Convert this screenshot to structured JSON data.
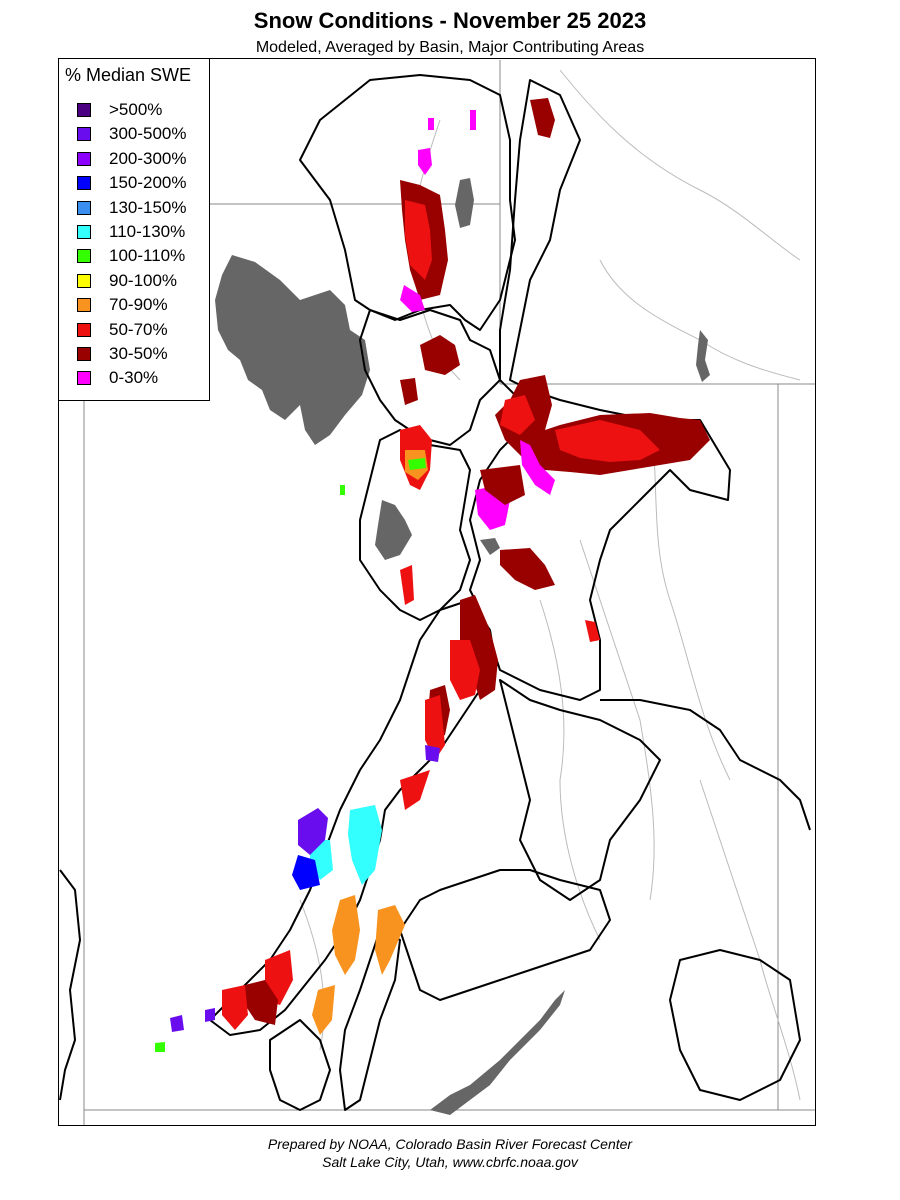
{
  "title": "Snow Conditions - November 25 2023",
  "subtitle": "Modeled, Averaged by Basin, Major Contributing Areas",
  "legend": {
    "title": "% Median SWE",
    "items": [
      {
        "label": ">500%",
        "color": "#4b0082"
      },
      {
        "label": "300-500%",
        "color": "#6a0dee"
      },
      {
        "label": "200-300%",
        "color": "#8b00ff"
      },
      {
        "label": "150-200%",
        "color": "#0000ff"
      },
      {
        "label": "130-150%",
        "color": "#3a8ef0"
      },
      {
        "label": "110-130%",
        "color": "#33ffff"
      },
      {
        "label": "100-110%",
        "color": "#33ff00"
      },
      {
        "label": "90-100%",
        "color": "#ffff00"
      },
      {
        "label": "70-90%",
        "color": "#f7931e"
      },
      {
        "label": "50-70%",
        "color": "#ee1111"
      },
      {
        "label": "30-50%",
        "color": "#990000"
      },
      {
        "label": "0-30%",
        "color": "#ff00ff"
      }
    ]
  },
  "colors": {
    "lake": "#666666",
    "basin_border": "#000000",
    "state_border": "#888888",
    "river": "#bbbbbb"
  },
  "credit": {
    "line1": "Prepared by NOAA, Colorado Basin River Forecast Center",
    "line2": "Salt Lake City, Utah, www.cbrfc.noaa.gov"
  }
}
